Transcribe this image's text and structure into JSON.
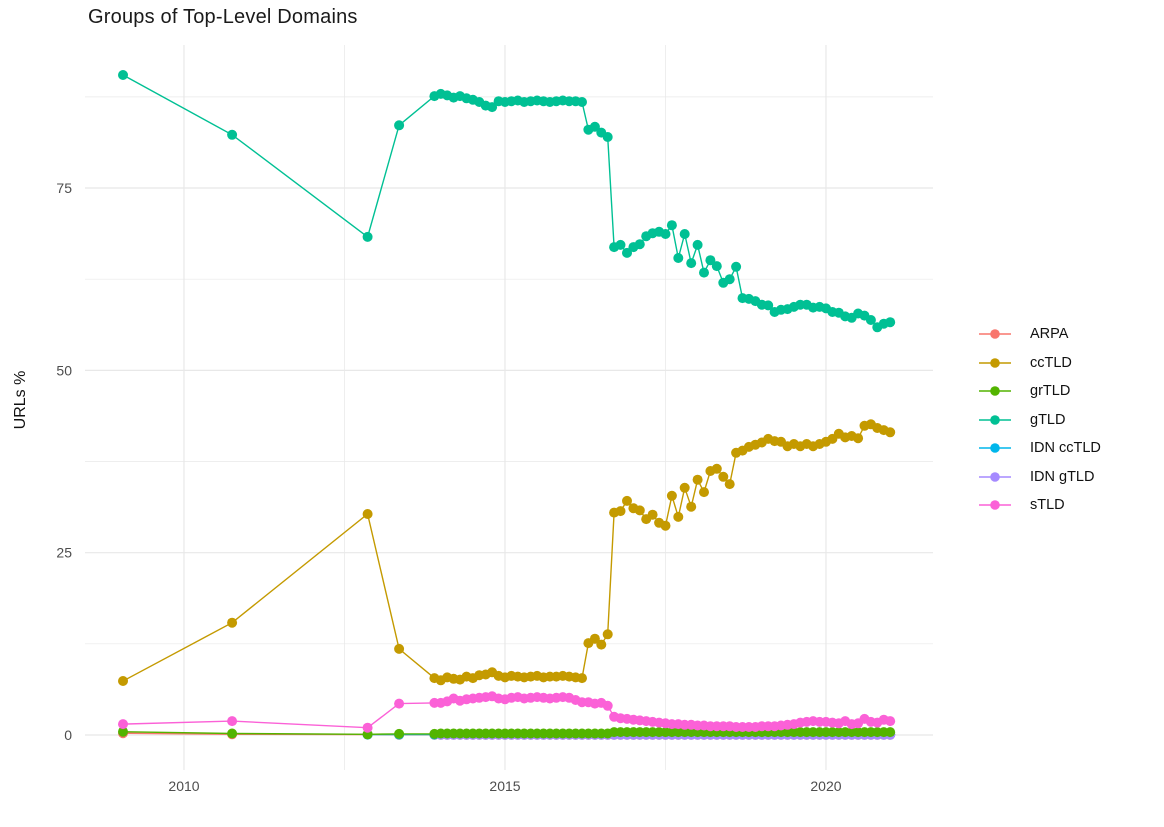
{
  "page": {
    "background": "#ffffff"
  },
  "chart_data": {
    "type": "line",
    "title": "Groups of Top-Level Domains",
    "xlabel": "",
    "ylabel": "URLs %",
    "grid": "on",
    "grid_color": "#E8E8E8",
    "legend_position": "right",
    "x_domain": [
      2008.458,
      2021.667
    ],
    "y_domain": [
      -4.8,
      94.61
    ],
    "x_ticks": [
      2010,
      2015,
      2020
    ],
    "x_tick_labels": [
      "2010",
      "2015",
      "2020"
    ],
    "x_minor": [
      2012.5,
      2017.5
    ],
    "y_ticks": [
      0,
      25,
      50,
      75
    ],
    "y_tick_labels": [
      "0",
      "25",
      "50",
      "75"
    ],
    "y_minor": [
      12.5,
      37.5,
      62.5,
      87.5
    ],
    "marker_radius": 5,
    "line_width": 1.4,
    "draw_order": [
      0,
      4,
      5,
      2,
      1,
      3,
      6
    ],
    "series": [
      {
        "name": "ARPA",
        "color": "#F8766D",
        "points": [
          [
            2009.05,
            0.25
          ],
          [
            2010.75,
            0.1
          ],
          [
            2012.86,
            0.05
          ],
          [
            2013.35,
            0.03
          ],
          [
            2013.9,
            0.03
          ]
        ],
        "runs": [
          {
            "from": 2014.0,
            "to": 2021.0,
            "step": 0.1,
            "value": 0.03
          }
        ]
      },
      {
        "name": "ccTLD",
        "color": "#C49A00",
        "points": [
          [
            2009.05,
            7.4
          ],
          [
            2010.75,
            15.4
          ],
          [
            2012.86,
            30.3
          ],
          [
            2013.35,
            11.8
          ],
          [
            2013.9,
            7.8
          ]
        ],
        "seq": {
          "start": 2014.0,
          "step": 0.1,
          "values": [
            7.5,
            7.9,
            7.7,
            7.6,
            8.0,
            7.8,
            8.2,
            8.3,
            8.6,
            8.1,
            7.9,
            8.1,
            8.0,
            7.9,
            8.0,
            8.1,
            7.9,
            8.0,
            8.0,
            8.1,
            8.0,
            7.9,
            7.8,
            12.6,
            13.2,
            12.4,
            13.8,
            30.5,
            30.7,
            32.1,
            31.1,
            30.8,
            29.6,
            30.2,
            29.1,
            28.7,
            32.8,
            29.9,
            33.9,
            31.3,
            35.0,
            33.3,
            36.2,
            36.5,
            35.4,
            34.4,
            38.7,
            39.0,
            39.5,
            39.8,
            40.1,
            40.6,
            40.3,
            40.2,
            39.6,
            39.9,
            39.6,
            39.9,
            39.6,
            39.9,
            40.2,
            40.6,
            41.3,
            40.8,
            41.0,
            40.7,
            42.4,
            42.6,
            42.1,
            41.8,
            41.5
          ]
        }
      },
      {
        "name": "grTLD",
        "color": "#53B400",
        "points": [
          [
            2009.05,
            0.45
          ],
          [
            2010.75,
            0.2
          ],
          [
            2012.86,
            0.1
          ],
          [
            2013.35,
            0.15
          ],
          [
            2013.9,
            0.15
          ]
        ],
        "runs": [
          {
            "from": 2014.0,
            "to": 2016.6,
            "step": 0.1,
            "value": 0.2
          },
          {
            "from": 2016.7,
            "to": 2021.0,
            "step": 0.1,
            "value": 0.4
          }
        ]
      },
      {
        "name": "gTLD",
        "color": "#00C094",
        "points": [
          [
            2009.05,
            90.5
          ],
          [
            2010.75,
            82.3
          ],
          [
            2012.86,
            68.3
          ],
          [
            2013.35,
            83.6
          ],
          [
            2013.9,
            87.6
          ]
        ],
        "seq": {
          "start": 2014.0,
          "step": 0.1,
          "values": [
            87.9,
            87.7,
            87.4,
            87.6,
            87.3,
            87.1,
            86.8,
            86.3,
            86.1,
            86.9,
            86.8,
            86.9,
            87.0,
            86.8,
            86.9,
            87.0,
            86.9,
            86.8,
            86.9,
            87.0,
            86.9,
            86.9,
            86.8,
            83.0,
            83.4,
            82.6,
            82.0,
            66.9,
            67.2,
            66.1,
            66.9,
            67.3,
            68.4,
            68.8,
            69.0,
            68.7,
            69.9,
            65.4,
            68.7,
            64.7,
            67.2,
            63.4,
            65.1,
            64.3,
            62.0,
            62.5,
            64.2,
            59.9,
            59.8,
            59.5,
            59.0,
            58.9,
            58.0,
            58.3,
            58.4,
            58.7,
            59.0,
            59.0,
            58.6,
            58.7,
            58.5,
            58.0,
            57.9,
            57.4,
            57.2,
            57.8,
            57.5,
            56.9,
            55.9,
            56.4,
            56.6
          ]
        }
      },
      {
        "name": "IDN ccTLD",
        "color": "#00B6EB",
        "points": [
          [
            2012.86,
            0.05
          ],
          [
            2013.35,
            0.05
          ],
          [
            2013.9,
            0.05
          ]
        ],
        "runs": [
          {
            "from": 2014.0,
            "to": 2021.0,
            "step": 0.1,
            "value": 0.08
          }
        ]
      },
      {
        "name": "IDN gTLD",
        "color": "#A58AFF",
        "points": [],
        "runs": [
          {
            "from": 2014.0,
            "to": 2021.0,
            "step": 0.1,
            "value": 0.02
          }
        ]
      },
      {
        "name": "sTLD",
        "color": "#FB61D7",
        "points": [
          [
            2009.05,
            1.5
          ],
          [
            2010.75,
            1.9
          ],
          [
            2012.86,
            1.0
          ],
          [
            2013.35,
            4.3
          ],
          [
            2013.9,
            4.4
          ]
        ],
        "seq": {
          "start": 2014.0,
          "step": 0.1,
          "values": [
            4.4,
            4.6,
            5.0,
            4.7,
            4.9,
            5.0,
            5.1,
            5.2,
            5.3,
            5.0,
            4.9,
            5.1,
            5.2,
            5.0,
            5.1,
            5.2,
            5.1,
            5.0,
            5.1,
            5.2,
            5.1,
            4.8,
            4.5,
            4.5,
            4.3,
            4.4,
            4.0,
            2.5,
            2.3,
            2.2,
            2.1,
            2.0,
            1.9,
            1.8,
            1.7,
            1.6,
            1.5,
            1.5,
            1.4,
            1.4,
            1.3,
            1.3,
            1.2,
            1.2,
            1.2,
            1.2,
            1.1,
            1.1,
            1.1,
            1.1,
            1.2,
            1.2,
            1.2,
            1.3,
            1.4,
            1.5,
            1.7,
            1.8,
            1.9,
            1.8,
            1.8,
            1.7,
            1.6,
            1.9,
            1.5,
            1.6,
            2.2,
            1.8,
            1.7,
            2.1,
            1.9
          ]
        }
      }
    ]
  }
}
